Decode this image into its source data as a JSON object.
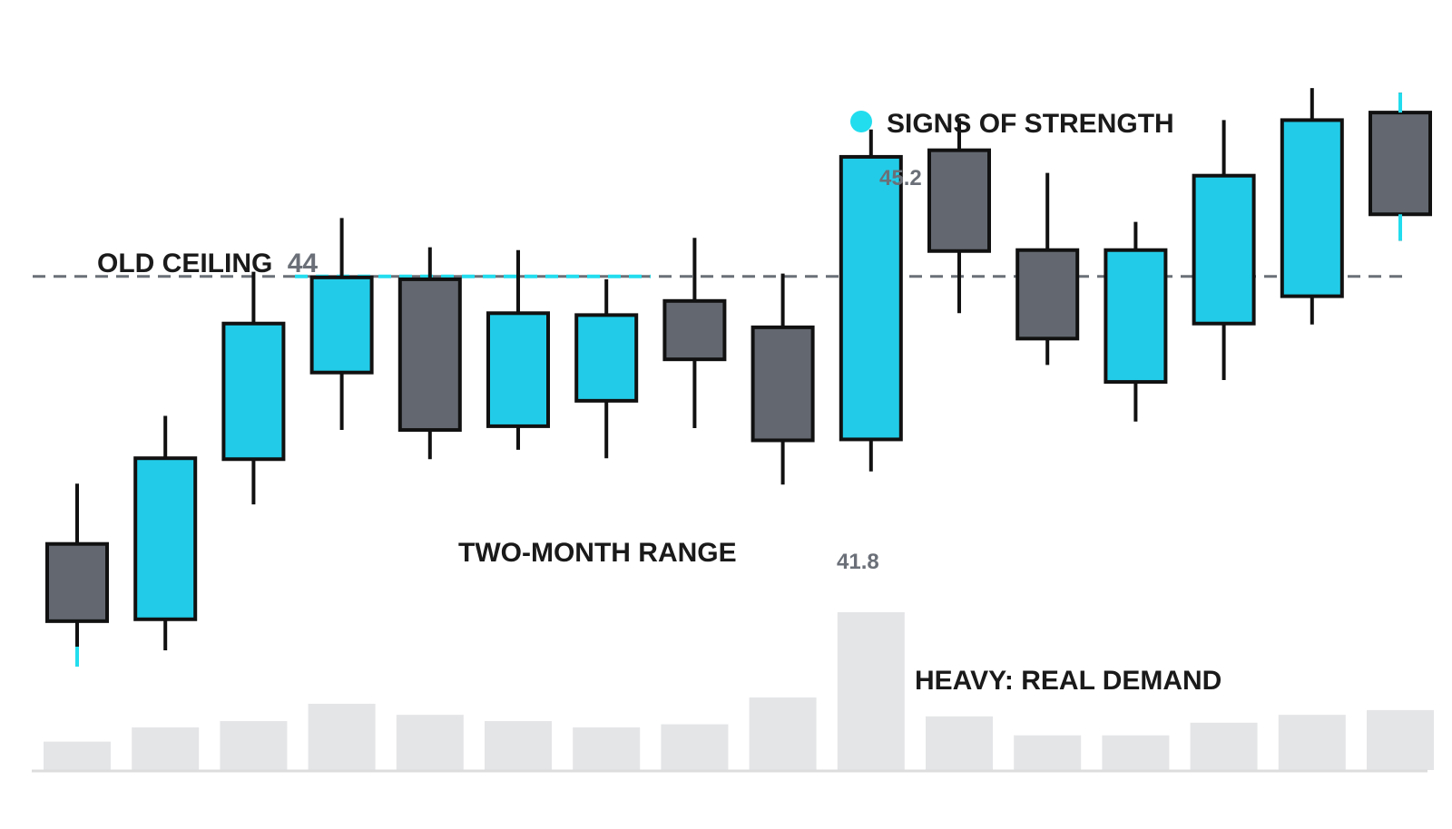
{
  "chart_data": {
    "type": "candlestick",
    "colors": {
      "up": "#22cce8",
      "down": "#636870",
      "outline": "#111111",
      "volume": "#e4e5e7",
      "ceiling": "#6b7078",
      "highlight": "#22ddee",
      "baseline": "#dddddd"
    },
    "ylim": [
      39.26,
      45.77
    ],
    "candles": [
      {
        "open": 41.16,
        "close": 40.34,
        "high": 41.8,
        "low": 40.05,
        "volume": 0.18,
        "dir": "down"
      },
      {
        "open": 40.36,
        "close": 42.07,
        "high": 42.52,
        "low": 40.03,
        "volume": 0.27,
        "dir": "up"
      },
      {
        "open": 42.06,
        "close": 43.5,
        "high": 44.05,
        "low": 41.58,
        "volume": 0.31,
        "dir": "up"
      },
      {
        "open": 42.98,
        "close": 43.99,
        "high": 44.62,
        "low": 42.37,
        "volume": 0.42,
        "dir": "up"
      },
      {
        "open": 43.97,
        "close": 42.37,
        "high": 44.31,
        "low": 42.06,
        "volume": 0.35,
        "dir": "down"
      },
      {
        "open": 42.41,
        "close": 43.61,
        "high": 44.28,
        "low": 42.16,
        "volume": 0.31,
        "dir": "up"
      },
      {
        "open": 42.68,
        "close": 43.59,
        "high": 43.97,
        "low": 42.07,
        "volume": 0.27,
        "dir": "up"
      },
      {
        "open": 43.74,
        "close": 43.12,
        "high": 44.41,
        "low": 42.39,
        "volume": 0.29,
        "dir": "down"
      },
      {
        "open": 43.46,
        "close": 42.26,
        "high": 44.03,
        "low": 41.79,
        "volume": 0.46,
        "dir": "down"
      },
      {
        "open": 42.27,
        "close": 45.27,
        "high": 45.56,
        "low": 41.93,
        "volume": 1.0,
        "dir": "up"
      },
      {
        "open": 45.34,
        "close": 44.27,
        "high": 45.68,
        "low": 43.61,
        "volume": 0.34,
        "dir": "down"
      },
      {
        "open": 44.28,
        "close": 43.34,
        "high": 45.1,
        "low": 43.06,
        "volume": 0.22,
        "dir": "down"
      },
      {
        "open": 42.88,
        "close": 44.28,
        "high": 44.58,
        "low": 42.46,
        "volume": 0.22,
        "dir": "up"
      },
      {
        "open": 43.5,
        "close": 45.07,
        "high": 45.66,
        "low": 42.9,
        "volume": 0.3,
        "dir": "up"
      },
      {
        "open": 43.79,
        "close": 45.66,
        "high": 46.0,
        "low": 43.49,
        "volume": 0.35,
        "dir": "up"
      },
      {
        "open": 45.74,
        "close": 44.66,
        "high": 45.95,
        "low": 44.38,
        "volume": 0.38,
        "dir": "down"
      }
    ],
    "ceiling": {
      "value": 44.0,
      "highlight_from_candle": 2.5,
      "highlight_to_candle": 6.5
    },
    "annotations": {
      "ceiling_label": "OLD CEILING",
      "ceiling_value": "44",
      "range_label": "TWO-MONTH RANGE",
      "strength_label": "SIGNS OF STRENGTH",
      "volume_label": "HEAVY: REAL DEMAND",
      "high_value": "45.2",
      "low_value": "41.8"
    }
  }
}
